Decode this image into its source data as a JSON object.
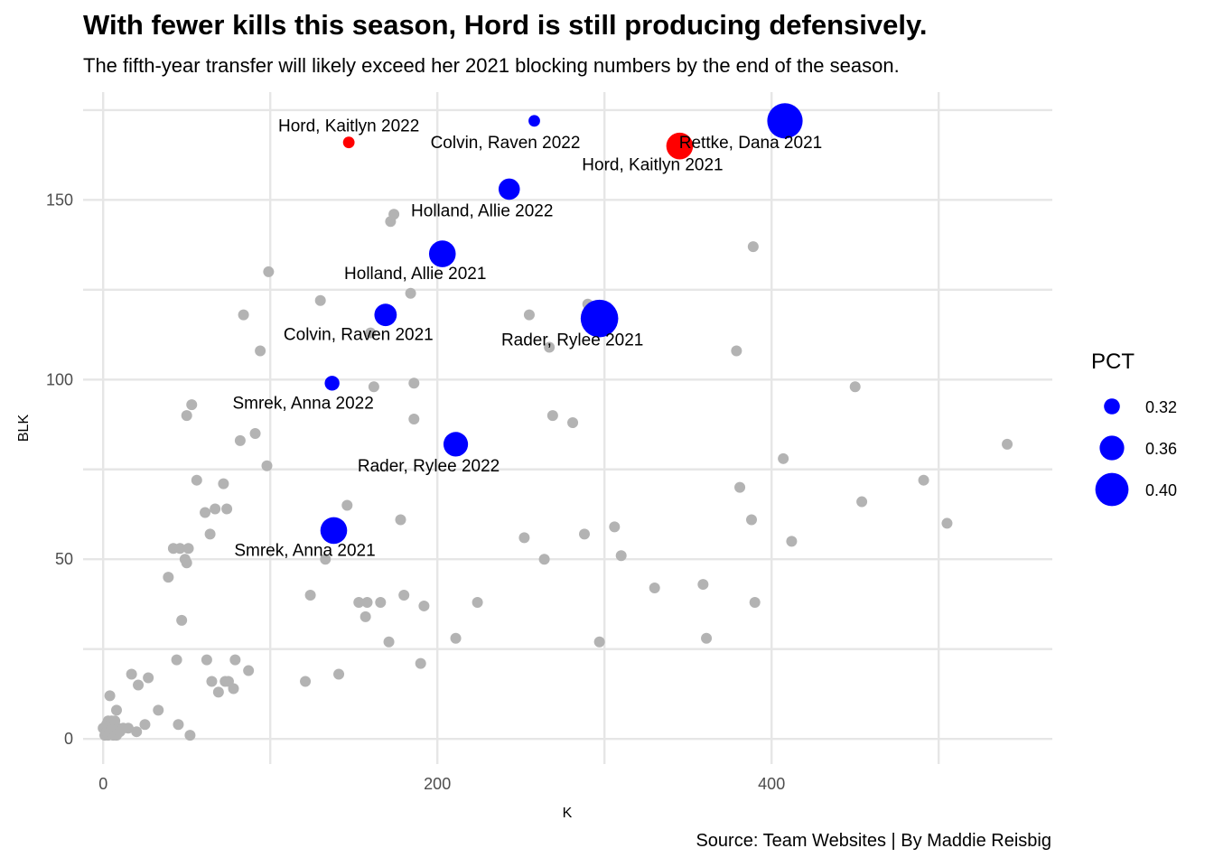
{
  "chart_data": {
    "type": "scatter",
    "title": "With fewer kills this season, Hord is still producing defensively.",
    "subtitle": "The fifth-year transfer will likely exceed her 2021 blocking numbers by the end of the season.",
    "caption": "Source: Team Websites | By Maddie Reisbig",
    "xlabel": "K",
    "ylabel": "BLK",
    "xlim": [
      -12,
      568
    ],
    "ylim": [
      -7,
      180
    ],
    "x_ticks": [
      0,
      200,
      400
    ],
    "y_ticks": [
      0,
      50,
      100,
      150
    ],
    "grid": true,
    "legend": {
      "title": "PCT",
      "placement": "right",
      "entries": [
        {
          "label": "0.32",
          "value": 0.32
        },
        {
          "label": "0.36",
          "value": 0.36
        },
        {
          "label": "0.40",
          "value": 0.4
        }
      ]
    },
    "colors": {
      "background_points": "#b3b3b3",
      "highlight_blue": "#0000ff",
      "highlight_red": "#ff0000"
    },
    "background_points": [
      [
        0,
        3
      ],
      [
        1,
        1
      ],
      [
        2,
        2
      ],
      [
        2,
        4
      ],
      [
        3,
        1
      ],
      [
        3,
        5
      ],
      [
        4,
        2
      ],
      [
        4,
        12
      ],
      [
        5,
        3
      ],
      [
        5,
        5
      ],
      [
        6,
        1
      ],
      [
        6,
        4
      ],
      [
        7,
        2
      ],
      [
        7,
        5
      ],
      [
        8,
        1
      ],
      [
        8,
        8
      ],
      [
        9,
        3
      ],
      [
        10,
        2
      ],
      [
        12,
        3
      ],
      [
        15,
        3
      ],
      [
        17,
        18
      ],
      [
        20,
        2
      ],
      [
        21,
        15
      ],
      [
        25,
        4
      ],
      [
        27,
        17
      ],
      [
        33,
        8
      ],
      [
        39,
        45
      ],
      [
        42,
        53
      ],
      [
        44,
        22
      ],
      [
        45,
        4
      ],
      [
        46,
        53
      ],
      [
        47,
        33
      ],
      [
        49,
        50
      ],
      [
        50,
        49
      ],
      [
        50,
        90
      ],
      [
        51,
        53
      ],
      [
        52,
        1
      ],
      [
        53,
        93
      ],
      [
        56,
        72
      ],
      [
        61,
        63
      ],
      [
        62,
        22
      ],
      [
        64,
        57
      ],
      [
        65,
        16
      ],
      [
        67,
        64
      ],
      [
        69,
        13
      ],
      [
        72,
        71
      ],
      [
        73,
        16
      ],
      [
        74,
        64
      ],
      [
        75,
        16
      ],
      [
        78,
        14
      ],
      [
        79,
        22
      ],
      [
        82,
        83
      ],
      [
        84,
        118
      ],
      [
        87,
        19
      ],
      [
        91,
        85
      ],
      [
        94,
        108
      ],
      [
        98,
        76
      ],
      [
        99,
        130
      ],
      [
        121,
        16
      ],
      [
        124,
        40
      ],
      [
        130,
        122
      ],
      [
        133,
        50
      ],
      [
        141,
        18
      ],
      [
        146,
        65
      ],
      [
        153,
        38
      ],
      [
        157,
        34
      ],
      [
        158,
        38
      ],
      [
        160,
        113
      ],
      [
        162,
        98
      ],
      [
        166,
        38
      ],
      [
        171,
        27
      ],
      [
        172,
        144
      ],
      [
        174,
        146
      ],
      [
        178,
        61
      ],
      [
        180,
        40
      ],
      [
        184,
        124
      ],
      [
        186,
        89
      ],
      [
        186,
        99
      ],
      [
        190,
        21
      ],
      [
        192,
        37
      ],
      [
        211,
        28
      ],
      [
        224,
        38
      ],
      [
        252,
        56
      ],
      [
        255,
        118
      ],
      [
        264,
        50
      ],
      [
        267,
        109
      ],
      [
        269,
        90
      ],
      [
        281,
        88
      ],
      [
        288,
        57
      ],
      [
        290,
        121
      ],
      [
        297,
        27
      ],
      [
        306,
        59
      ],
      [
        310,
        51
      ],
      [
        330,
        42
      ],
      [
        359,
        43
      ],
      [
        361,
        28
      ],
      [
        379,
        108
      ],
      [
        381,
        70
      ],
      [
        388,
        61
      ],
      [
        389,
        137
      ],
      [
        390,
        38
      ],
      [
        407,
        78
      ],
      [
        412,
        55
      ],
      [
        450,
        98
      ],
      [
        454,
        66
      ],
      [
        491,
        72
      ],
      [
        505,
        60
      ],
      [
        541,
        82
      ]
    ],
    "highlighted_points": [
      {
        "label": "Hord, Kaitlyn 2022",
        "x": 147,
        "y": 166,
        "pct": 0.3,
        "color": "red"
      },
      {
        "label": "Hord, Kaitlyn 2021",
        "x": 345,
        "y": 165,
        "pct": 0.37,
        "color": "red"
      },
      {
        "label": "Colvin, Raven 2022",
        "x": 258,
        "y": 172,
        "pct": 0.3,
        "color": "blue"
      },
      {
        "label": "Rettke, Dana 2021",
        "x": 408,
        "y": 172,
        "pct": 0.41,
        "color": "blue"
      },
      {
        "label": "Holland, Allie 2022",
        "x": 243,
        "y": 153,
        "pct": 0.345,
        "color": "blue"
      },
      {
        "label": "Holland, Allie 2021",
        "x": 203,
        "y": 135,
        "pct": 0.37,
        "color": "blue"
      },
      {
        "label": "Colvin, Raven 2021",
        "x": 169,
        "y": 118,
        "pct": 0.35,
        "color": "blue"
      },
      {
        "label": "Rader, Rylee 2021",
        "x": 297,
        "y": 117,
        "pct": 0.42,
        "color": "blue"
      },
      {
        "label": "Smrek, Anna 2022",
        "x": 137,
        "y": 99,
        "pct": 0.315,
        "color": "blue"
      },
      {
        "label": "Rader, Rylee 2022",
        "x": 211,
        "y": 82,
        "pct": 0.36,
        "color": "blue"
      },
      {
        "label": "Smrek, Anna 2021",
        "x": 138,
        "y": 58,
        "pct": 0.37,
        "color": "blue"
      }
    ]
  }
}
